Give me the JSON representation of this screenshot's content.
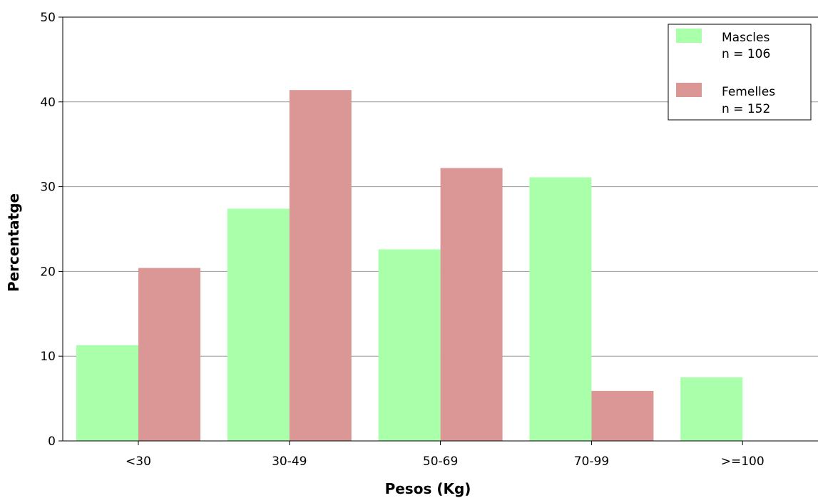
{
  "chart_data": {
    "type": "bar",
    "categories": [
      "<30",
      "30-49",
      "50-69",
      "70-99",
      ">=100"
    ],
    "series": [
      {
        "name": "Mascles",
        "n_label": "n = 106",
        "color": "#aaffaa",
        "values": [
          11.3,
          27.4,
          22.6,
          31.1,
          7.5
        ]
      },
      {
        "name": "Femelles",
        "n_label": "n = 152",
        "color": "#db9696",
        "values": [
          20.4,
          41.4,
          32.2,
          5.9,
          0
        ]
      }
    ],
    "xlabel": "Pesos (Kg)",
    "ylabel": "Percentatge",
    "ylim": [
      0,
      50
    ],
    "yticks": [
      "0",
      "10",
      "20",
      "30",
      "40",
      "50"
    ],
    "grid": true,
    "gridline_color": "#999999",
    "legend_position": "top-right"
  }
}
